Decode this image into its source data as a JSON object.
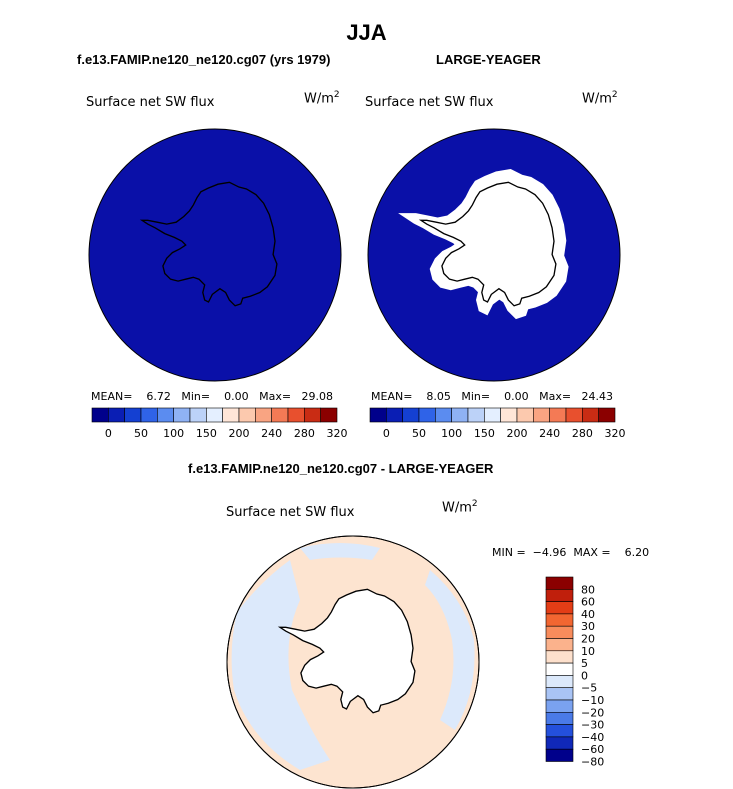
{
  "title": "JJA",
  "left_panel": {
    "case": "f.e13.FAMIP.ne120_ne120.cg07 (yrs 1979)",
    "variable": "Surface net SW flux",
    "units": "W/m",
    "units_exp": "2",
    "stats": "MEAN=    6.72   Min=    0.00   Max=   29.08",
    "colorbar_labels": [
      "0",
      "50",
      "100",
      "150",
      "200",
      "240",
      "280",
      "320"
    ]
  },
  "right_panel": {
    "case": "LARGE-YEAGER",
    "variable": "Surface net SW flux",
    "units": "W/m",
    "units_exp": "2",
    "stats": "MEAN=    8.05   Min=    0.00   Max=   24.43",
    "colorbar_labels": [
      "0",
      "50",
      "100",
      "150",
      "200",
      "240",
      "280",
      "320"
    ]
  },
  "diff_panel": {
    "case": "f.e13.FAMIP.ne120_ne120.cg07 - LARGE-YEAGER",
    "variable": "Surface net SW flux",
    "units": "W/m",
    "units_exp": "2",
    "stats": "MIN =  −4.96  MAX =    6.20",
    "colorbar_labels": [
      "80",
      "60",
      "40",
      "30",
      "20",
      "10",
      "5",
      "0",
      "−5",
      "−10",
      "−20",
      "−30",
      "−40",
      "−60",
      "−80"
    ]
  },
  "colors": {
    "abs_scale": [
      "#00008b",
      "#0a1eb4",
      "#1440d2",
      "#2f63e8",
      "#5b8cf0",
      "#8fb2f4",
      "#bcd2f8",
      "#e4efff",
      "#ffe6d8",
      "#fcc9ae",
      "#f9a482",
      "#f47a55",
      "#e8502e",
      "#c92c14",
      "#8b0000"
    ],
    "diff_scale": [
      "#8b0000",
      "#c01f0c",
      "#e33d16",
      "#f26631",
      "#f88c5c",
      "#fbb28c",
      "#fde0cc",
      "#ffffff",
      "#dce9fb",
      "#a9c4f5",
      "#7aa2f0",
      "#4a7ae8",
      "#2450dc",
      "#1028b8",
      "#00008b"
    ],
    "ocean_abs": "#0a10a8",
    "diff_pos": "#fde4d0",
    "diff_neg": "#dce9fb"
  }
}
